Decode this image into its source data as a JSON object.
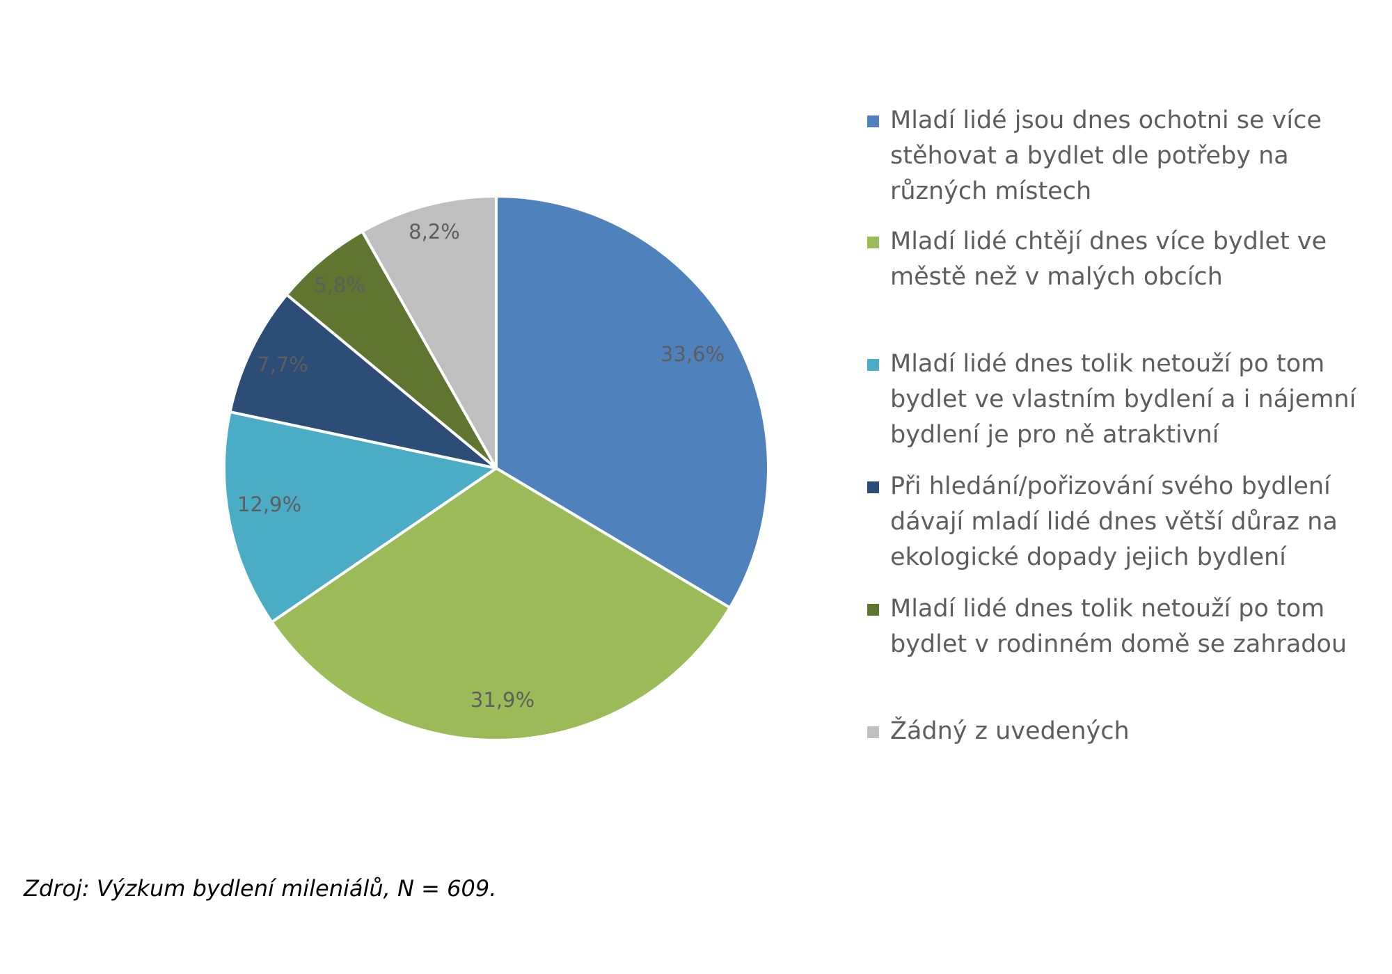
{
  "chart_data": {
    "type": "pie",
    "categories": [
      "Mladí lidé jsou dnes ochotni se více stěhovat a bydlet dle potřeby na různých místech",
      "Mladí lidé chtějí dnes více bydlet ve městě než v malých obcích",
      "Mladí lidé dnes tolik netouží po tom bydlet ve vlastním bydlení a i nájemní bydlení je pro ně atraktivní",
      "Při hledání/pořizování svého bydlení dávají mladí lidé dnes větší důraz na ekologické dopady jejich bydlení",
      "Mladí lidé dnes tolik netouží po tom bydlet v rodinném domě se zahradou",
      "Žádný z uvedených"
    ],
    "values": [
      33.6,
      31.9,
      12.9,
      7.7,
      5.8,
      8.2
    ],
    "data_labels": [
      "33,6%",
      "31,9%",
      "12,9%",
      "7,7%",
      "5,8%",
      "8,2%"
    ],
    "colors": [
      "#4f81bd",
      "#9bbb59",
      "#4bacc6",
      "#2c4d75",
      "#5f7530",
      "#bfbfbf"
    ],
    "start_angle": "12 o'clock",
    "direction": "clockwise",
    "legend_position": "right",
    "title": ""
  },
  "source_note": "Zdroj: Výzkum bydlení mileniálů, N = 609."
}
